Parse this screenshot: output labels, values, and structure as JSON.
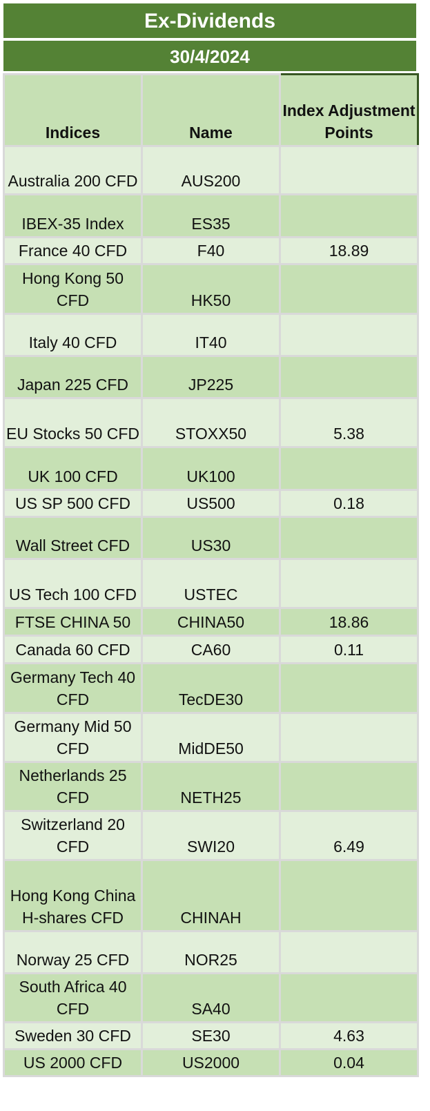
{
  "title": "Ex-Dividends",
  "date": "30/4/2024",
  "columns": [
    "Indices",
    "Name",
    "Index Adjustment Points"
  ],
  "rows": [
    {
      "index": "Australia 200 CFD",
      "name": "AUS200",
      "points": ""
    },
    {
      "index": "IBEX-35 Index",
      "name": "ES35",
      "points": ""
    },
    {
      "index": "France 40 CFD",
      "name": "F40",
      "points": "18.89"
    },
    {
      "index": "Hong Kong 50 CFD",
      "name": "HK50",
      "points": ""
    },
    {
      "index": "Italy 40 CFD",
      "name": "IT40",
      "points": ""
    },
    {
      "index": "Japan 225 CFD",
      "name": "JP225",
      "points": ""
    },
    {
      "index": "EU Stocks 50 CFD",
      "name": "STOXX50",
      "points": "5.38"
    },
    {
      "index": "UK 100 CFD",
      "name": "UK100",
      "points": ""
    },
    {
      "index": "US SP 500 CFD",
      "name": "US500",
      "points": "0.18"
    },
    {
      "index": "Wall Street CFD",
      "name": "US30",
      "points": ""
    },
    {
      "index": "US Tech 100 CFD",
      "name": "USTEC",
      "points": ""
    },
    {
      "index": "FTSE CHINA 50",
      "name": "CHINA50",
      "points": "18.86"
    },
    {
      "index": "Canada 60 CFD",
      "name": "CA60",
      "points": "0.11"
    },
    {
      "index": "Germany Tech 40 CFD",
      "name": "TecDE30",
      "points": ""
    },
    {
      "index": "Germany Mid 50 CFD",
      "name": "MidDE50",
      "points": ""
    },
    {
      "index": "Netherlands 25 CFD",
      "name": "NETH25",
      "points": ""
    },
    {
      "index": "Switzerland 20 CFD",
      "name": "SWI20",
      "points": "6.49"
    },
    {
      "index": "Hong Kong China H-shares CFD",
      "name": "CHINAH",
      "points": ""
    },
    {
      "index": "Norway 25 CFD",
      "name": "NOR25",
      "points": ""
    },
    {
      "index": "South Africa 40 CFD",
      "name": "SA40",
      "points": ""
    },
    {
      "index": "Sweden 30 CFD",
      "name": "SE30",
      "points": "4.63"
    },
    {
      "index": "US 2000 CFD",
      "name": "US2000",
      "points": "0.04"
    }
  ],
  "colors": {
    "header_bar": "#548235",
    "column_header": "#c6e0b4",
    "row_light": "#e2efda",
    "row_dark": "#c6e0b4"
  }
}
